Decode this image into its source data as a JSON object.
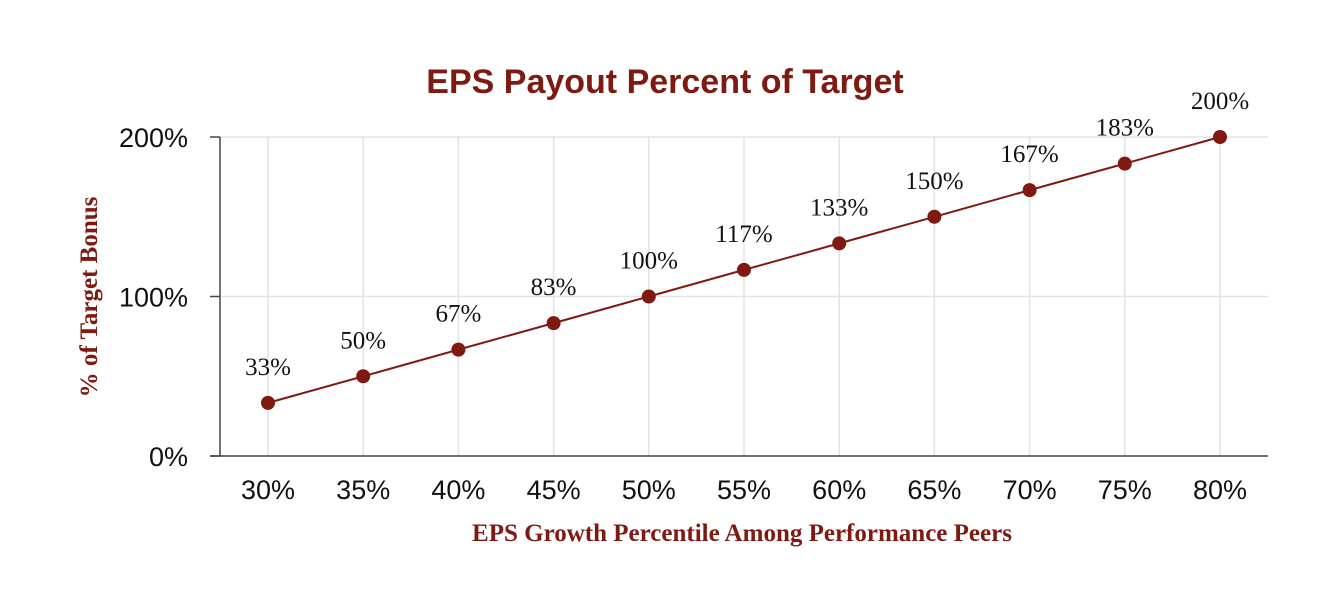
{
  "colors": {
    "accent": "#7f1a12",
    "gridline": "#e3e3e3",
    "axis": "#444444",
    "text": "#111111"
  },
  "chart_data": {
    "type": "line",
    "title": "EPS Payout Percent of Target",
    "xlabel": "EPS Growth Percentile Among Performance Peers",
    "ylabel": "% of Target Bonus",
    "x": [
      30,
      35,
      40,
      45,
      50,
      55,
      60,
      65,
      70,
      75,
      80
    ],
    "x_tick_labels": [
      "30%",
      "35%",
      "40%",
      "45%",
      "50%",
      "55%",
      "60%",
      "65%",
      "70%",
      "75%",
      "80%"
    ],
    "series": [
      {
        "values": [
          33.3,
          50,
          66.7,
          83.3,
          100,
          116.7,
          133.3,
          150,
          166.7,
          183.3,
          200
        ],
        "data_labels": [
          "33%",
          "50%",
          "67%",
          "83%",
          "100%",
          "117%",
          "133%",
          "150%",
          "167%",
          "183%",
          "200%"
        ]
      }
    ],
    "ylim": [
      0,
      200
    ],
    "y_ticks": [
      0,
      100,
      200
    ],
    "y_tick_labels": [
      "0%",
      "100%",
      "200%"
    ],
    "grid": true,
    "markers": "filled-circle"
  }
}
